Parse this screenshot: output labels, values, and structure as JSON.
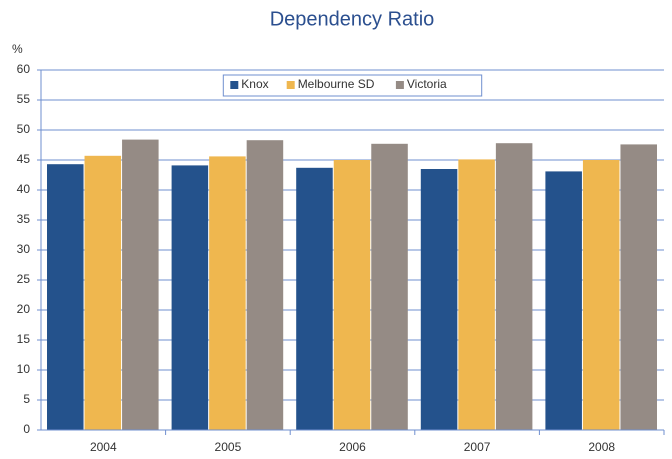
{
  "chart_data": {
    "type": "bar",
    "title": "Dependency Ratio",
    "y_label": "%",
    "categories": [
      "2004",
      "2005",
      "2006",
      "2007",
      "2008"
    ],
    "series": [
      {
        "name": "Knox",
        "color": "#24528c",
        "values": [
          44.3,
          44.1,
          43.7,
          43.5,
          43.1
        ]
      },
      {
        "name": "Melbourne SD",
        "color": "#efb74f",
        "values": [
          45.7,
          45.6,
          45.0,
          45.1,
          45.0
        ]
      },
      {
        "name": "Victoria",
        "color": "#958b85",
        "values": [
          48.4,
          48.3,
          47.7,
          47.8,
          47.6
        ]
      }
    ],
    "ylim": [
      0,
      60
    ],
    "yticks": [
      0,
      5,
      10,
      15,
      20,
      25,
      30,
      35,
      40,
      45,
      50,
      55,
      60
    ],
    "grid": true,
    "legend": "top"
  }
}
